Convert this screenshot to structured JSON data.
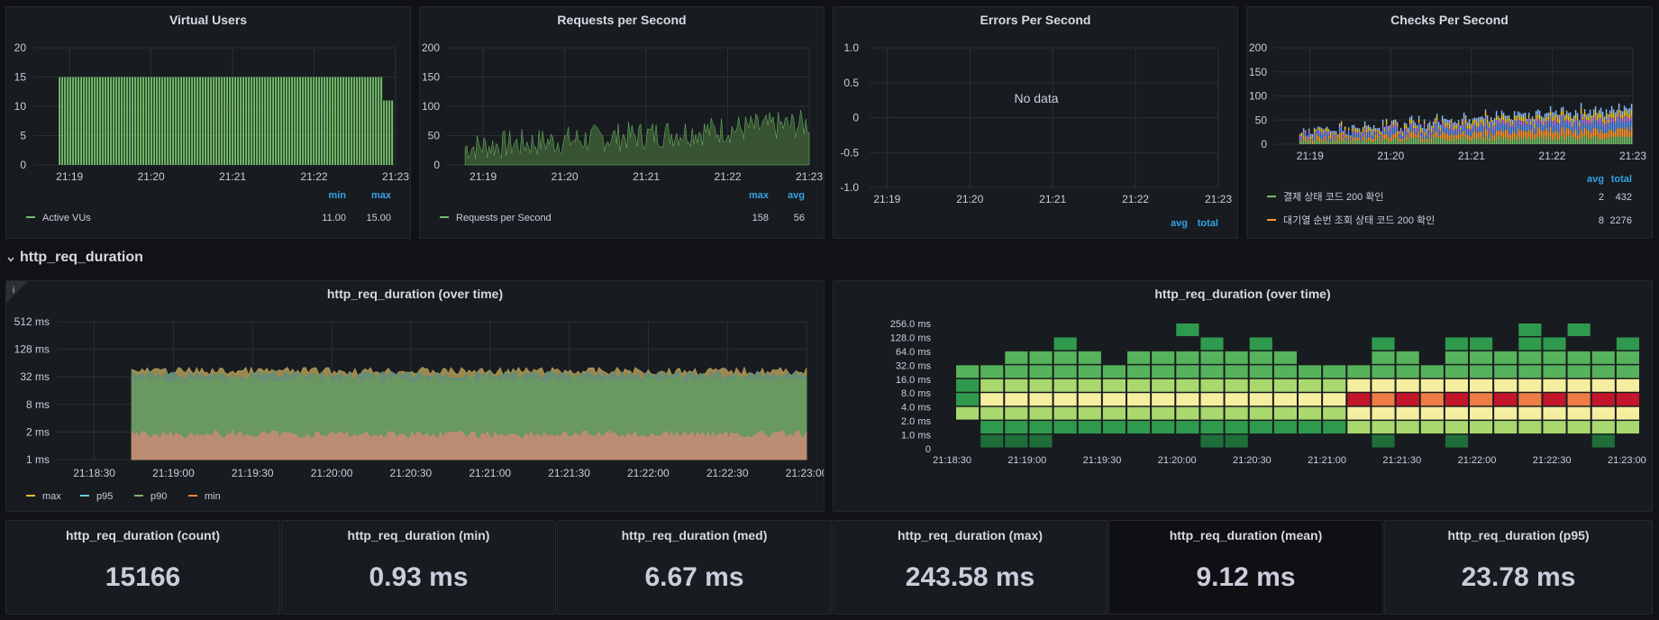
{
  "colors": {
    "green": "#73bf69",
    "green_fill": "#3b5a34",
    "grid": "#2c3036",
    "accent_blue": "#33a2e5",
    "orange": "#fade2a",
    "yellow": "#eab839",
    "salmon": "#f2a08c",
    "teal": "#8ab8ff",
    "red": "#e02f44"
  },
  "panels": {
    "vu": {
      "title": "Virtual Users",
      "legend_headers": [
        "min",
        "max"
      ],
      "legend": [
        {
          "name": "Active VUs",
          "values": [
            "11.00",
            "15.00"
          ]
        }
      ]
    },
    "rps": {
      "title": "Requests per Second",
      "legend_headers": [
        "max",
        "avg"
      ],
      "legend": [
        {
          "name": "Requests per Second",
          "values": [
            "158",
            "56"
          ]
        }
      ]
    },
    "eps": {
      "title": "Errors Per Second",
      "no_data": "No data",
      "legend_headers": [
        "avg",
        "total"
      ]
    },
    "cps": {
      "title": "Checks Per Second",
      "legend_headers": [
        "avg",
        "total"
      ],
      "legend": [
        {
          "name": "결제 상태 코드 200 확인",
          "values": [
            "2",
            "432"
          ],
          "color": "#73bf69"
        },
        {
          "name": "대기열 순번 조회 상태 코드 200 확인",
          "values": [
            "8",
            "2276"
          ],
          "color": "#ff9830"
        }
      ]
    },
    "dur_time": {
      "title": "http_req_duration (over time)",
      "legend": [
        {
          "name": "max",
          "color": "#eab839"
        },
        {
          "name": "p95",
          "color": "#6ed0e0"
        },
        {
          "name": "p90",
          "color": "#7eb26d"
        },
        {
          "name": "min",
          "color": "#ef843c"
        }
      ]
    },
    "heat": {
      "title": "http_req_duration (over time)"
    }
  },
  "row": {
    "title": "http_req_duration"
  },
  "stats": [
    {
      "title": "http_req_duration (count)",
      "value": "15166"
    },
    {
      "title": "http_req_duration (min)",
      "value": "0.93 ms"
    },
    {
      "title": "http_req_duration (med)",
      "value": "6.67 ms"
    },
    {
      "title": "http_req_duration (max)",
      "value": "243.58 ms"
    },
    {
      "title": "http_req_duration (mean)",
      "value": "9.12 ms"
    },
    {
      "title": "http_req_duration (p95)",
      "value": "23.78 ms"
    }
  ],
  "chart_data": [
    {
      "type": "bar",
      "title": "Virtual Users",
      "x_ticks": [
        "21:19",
        "21:20",
        "21:21",
        "21:22",
        "21:23"
      ],
      "y_ticks": [
        "0",
        "5",
        "10",
        "15",
        "20"
      ],
      "ylim": [
        0,
        20
      ],
      "series": [
        {
          "name": "Active VUs",
          "min": 11,
          "max": 15
        }
      ]
    },
    {
      "type": "area",
      "title": "Requests per Second",
      "x_ticks": [
        "21:19",
        "21:20",
        "21:21",
        "21:22",
        "21:23"
      ],
      "y_ticks": [
        "0",
        "50",
        "100",
        "150",
        "200"
      ],
      "ylim": [
        0,
        200
      ],
      "series": [
        {
          "name": "Requests per Second",
          "max": 158,
          "avg": 56
        }
      ]
    },
    {
      "type": "line",
      "title": "Errors Per Second",
      "x_ticks": [
        "21:19",
        "21:20",
        "21:21",
        "21:22",
        "21:23"
      ],
      "y_ticks": [
        "1.0",
        "0.5",
        "0",
        "-0.5",
        "-1.0"
      ],
      "ylim": [
        -1,
        1
      ]
    },
    {
      "type": "bar",
      "title": "Checks Per Second",
      "x_ticks": [
        "21:19",
        "21:20",
        "21:21",
        "21:22",
        "21:23"
      ],
      "y_ticks": [
        "0",
        "50",
        "100",
        "150",
        "200"
      ],
      "ylim": [
        0,
        200
      ]
    },
    {
      "type": "area",
      "title": "http_req_duration (over time)",
      "x_ticks": [
        "21:18:30",
        "21:19:00",
        "21:19:30",
        "21:20:00",
        "21:20:30",
        "21:21:00",
        "21:21:30",
        "21:22:00",
        "21:22:30",
        "21:23:00"
      ],
      "y_ticks": [
        "512 ms",
        "128 ms",
        "32 ms",
        "8 ms",
        "2 ms",
        "1 ms"
      ],
      "y_scale": "log"
    },
    {
      "type": "heatmap",
      "title": "http_req_duration (over time)",
      "x_ticks": [
        "21:18:30",
        "21:19:00",
        "21:19:30",
        "21:20:00",
        "21:20:30",
        "21:21:00",
        "21:21:30",
        "21:22:00",
        "21:22:30",
        "21:23:00"
      ],
      "y_ticks": [
        "256.0 ms",
        "128.0 ms",
        "64.0 ms",
        "32.0 ms",
        "16.0 ms",
        "8.0 ms",
        "4.0 ms",
        "2.0 ms",
        "1.0 ms",
        "0"
      ]
    }
  ]
}
